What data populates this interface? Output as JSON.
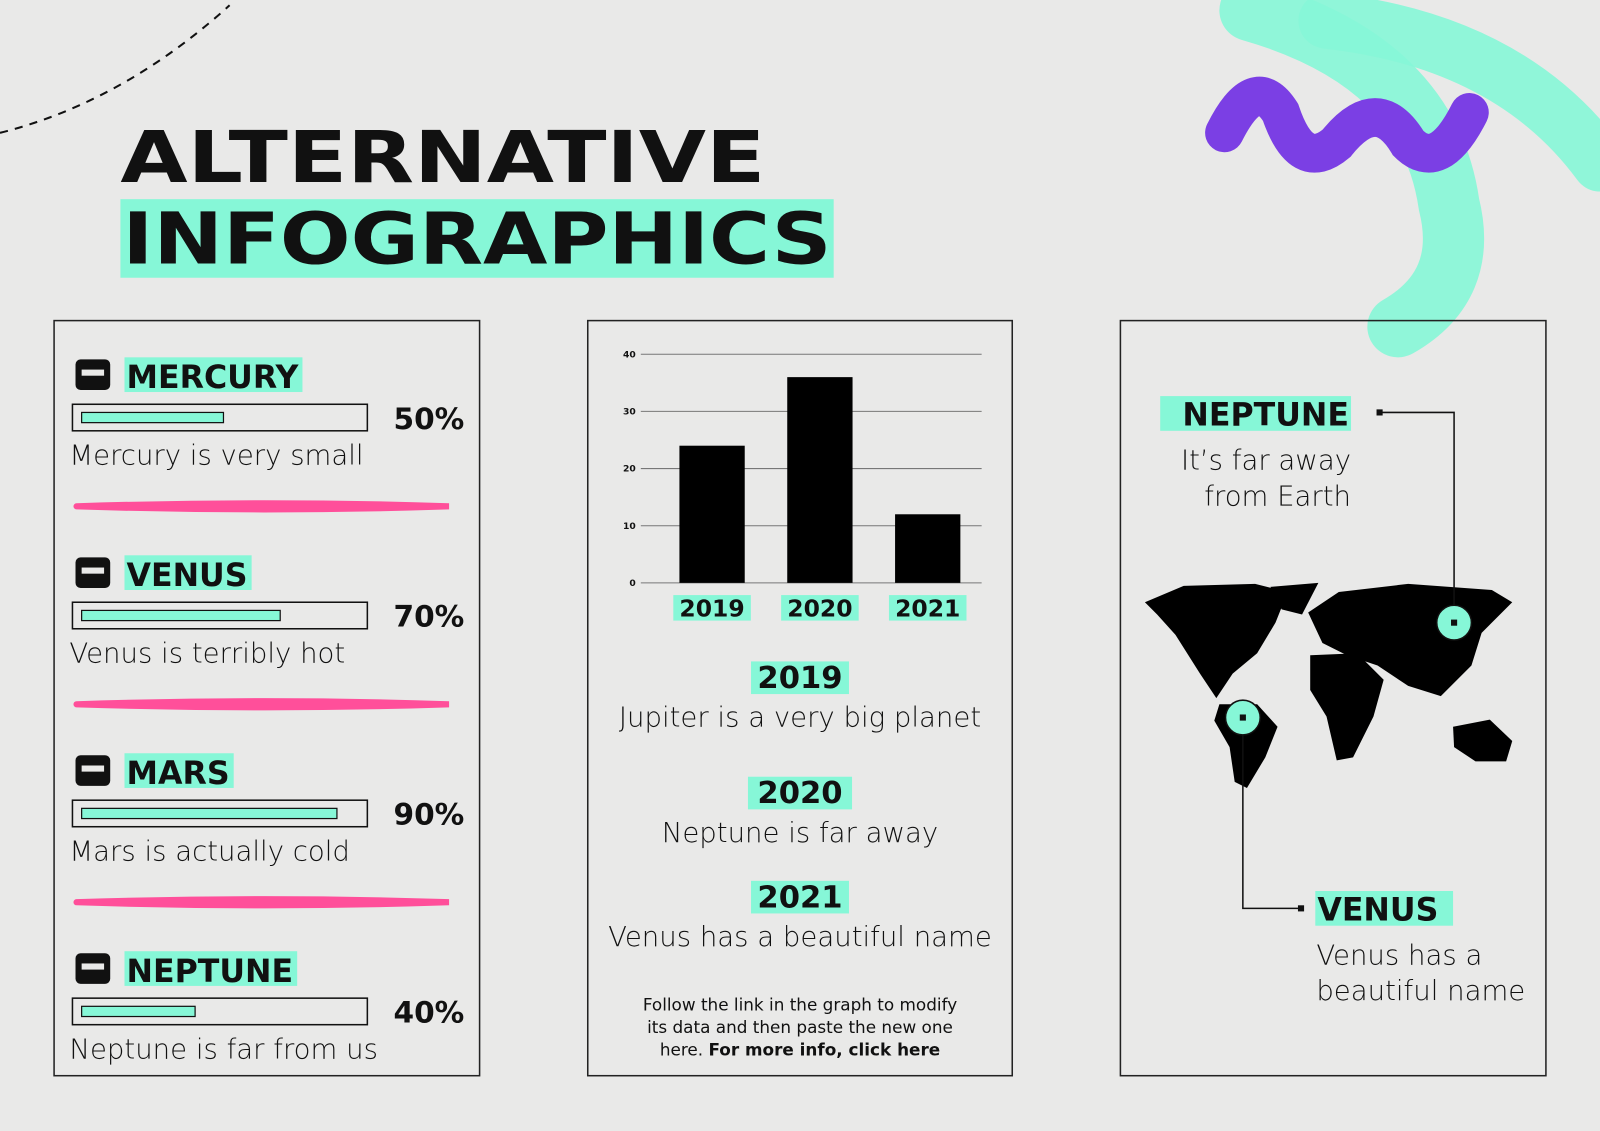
{
  "header": {
    "title_line1": "ALTERNATIVE",
    "title_line2": "INFOGRAPHICS"
  },
  "planets": [
    {
      "name": "MERCURY",
      "percent": 50,
      "percent_label": "50%",
      "text": "Mercury is very small"
    },
    {
      "name": "VENUS",
      "percent": 70,
      "percent_label": "70%",
      "text": "Venus is terribly hot"
    },
    {
      "name": "MARS",
      "percent": 90,
      "percent_label": "90%",
      "text": "Mars is actually cold"
    },
    {
      "name": "NEPTUNE",
      "percent": 40,
      "percent_label": "40%",
      "text": "Neptune is far from us"
    }
  ],
  "chart_data": {
    "type": "bar",
    "categories": [
      "2019",
      "2020",
      "2021"
    ],
    "values": [
      24,
      36,
      12
    ],
    "color": "#000000",
    "ylim": [
      0,
      40
    ],
    "yticks": [
      0,
      10,
      20,
      30,
      40
    ],
    "grid": true
  },
  "notes": [
    {
      "year": "2019",
      "text": "Jupiter is a very big planet"
    },
    {
      "year": "2020",
      "text": "Neptune is far away"
    },
    {
      "year": "2021",
      "text": "Venus has a beautiful name"
    }
  ],
  "footnote": {
    "line1": "Follow the link in the graph to modify",
    "line2": "its data and then paste the new one",
    "line3": "here.",
    "link": "For more info, click here"
  },
  "map": {
    "neptune": {
      "name": "NEPTUNE",
      "line1": "It’s far away",
      "line2": "from Earth"
    },
    "venus": {
      "name": "VENUS",
      "line1": "Venus has a",
      "line2": "beautiful name"
    }
  }
}
